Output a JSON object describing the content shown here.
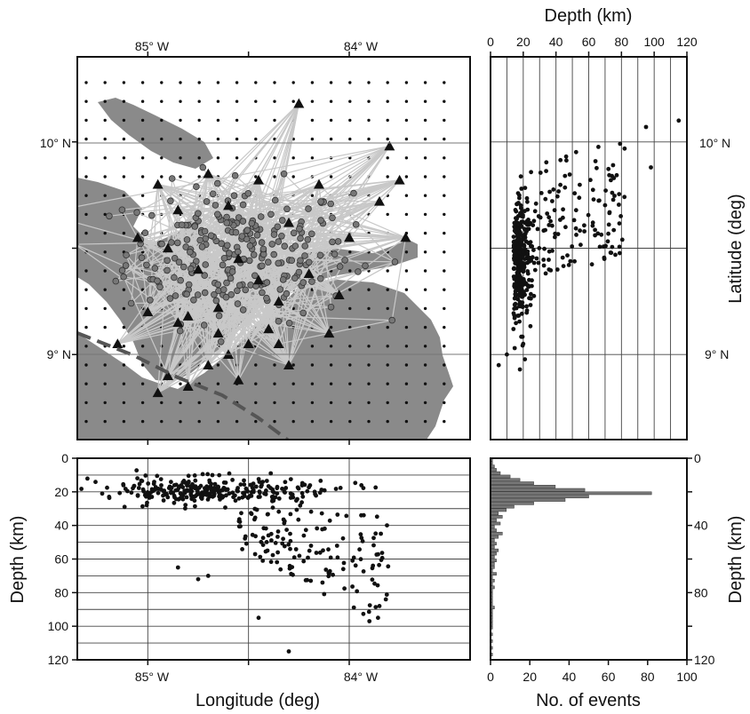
{
  "chart_data": [
    {
      "panel": "map",
      "type": "scatter",
      "x_ticks": [
        "85° W",
        "84° W"
      ],
      "y_ticks": [
        "10° N",
        "9° N"
      ],
      "xlim": [
        -85.35,
        -83.4
      ],
      "ylim": [
        8.6,
        10.4
      ],
      "series": [
        {
          "marker": "triangle",
          "color": "#111111",
          "x": [
            -84.25,
            -83.8,
            -83.75,
            -84.15,
            -84.45,
            -84.7,
            -84.95,
            -84.85,
            -85.05,
            -84.9,
            -84.6,
            -84.3,
            -84.0,
            -83.85,
            -83.72,
            -84.55,
            -84.75,
            -84.45,
            -84.2,
            -84.05,
            -84.35,
            -84.65,
            -84.8,
            -85.0,
            -84.4,
            -84.1,
            -84.5,
            -84.6,
            -84.7,
            -84.9,
            -84.55,
            -84.3,
            -84.8,
            -84.95,
            -85.15,
            -84.85,
            -84.65,
            -84.35
          ],
          "y": [
            10.18,
            9.98,
            9.82,
            9.8,
            9.82,
            9.85,
            9.8,
            9.68,
            9.55,
            9.5,
            9.7,
            9.62,
            9.55,
            9.72,
            9.55,
            9.45,
            9.4,
            9.35,
            9.38,
            9.28,
            9.25,
            9.22,
            9.18,
            9.2,
            9.12,
            9.1,
            9.05,
            9.0,
            8.95,
            8.9,
            8.88,
            8.95,
            8.85,
            8.82,
            9.05,
            9.15,
            9.1,
            9.05
          ]
        }
      ],
      "notes": "grey dots = earthquake epicenters; light grey lines = ray paths"
    },
    {
      "panel": "depth-lat",
      "type": "scatter",
      "xlabel": "Depth (km)",
      "ylabel": "Latitude (deg)",
      "x_ticks": [
        "0",
        "20",
        "40",
        "60",
        "80",
        "100",
        "120"
      ],
      "y_ticks": [
        "10° N",
        "9° N"
      ],
      "xlim": [
        0,
        120
      ],
      "ylim": [
        8.6,
        10.4
      ]
    },
    {
      "panel": "lon-depth",
      "type": "scatter",
      "xlabel": "Longitude (deg)",
      "ylabel": "Depth (km)",
      "x_ticks": [
        "85° W",
        "84° W"
      ],
      "y_ticks": [
        "0",
        "20",
        "40",
        "60",
        "80",
        "100",
        "120"
      ],
      "xlim": [
        -85.35,
        -83.4
      ],
      "ylim": [
        0,
        120
      ]
    },
    {
      "panel": "histogram",
      "type": "bar",
      "xlabel": "No. of events",
      "ylabel": "Depth (km)",
      "x_ticks": [
        "0",
        "20",
        "40",
        "60",
        "80",
        "100"
      ],
      "y_ticks": [
        "0",
        "40",
        "80",
        "120"
      ],
      "xlim": [
        0,
        100
      ],
      "ylim": [
        0,
        120
      ],
      "bin_width_km": 2,
      "depth_bins": [
        1,
        3,
        5,
        7,
        9,
        11,
        13,
        15,
        17,
        19,
        21,
        23,
        25,
        27,
        29,
        31,
        33,
        35,
        37,
        39,
        41,
        43,
        45,
        47,
        49,
        51,
        53,
        55,
        57,
        59,
        61,
        63,
        65,
        67,
        69,
        71,
        73,
        75,
        77,
        79,
        81,
        83,
        85,
        87,
        89,
        91,
        93,
        95,
        97,
        99,
        101,
        103,
        105,
        107,
        109,
        111,
        113,
        115,
        117,
        119
      ],
      "counts": [
        1,
        1,
        2,
        3,
        5,
        10,
        15,
        22,
        33,
        48,
        82,
        50,
        38,
        22,
        12,
        8,
        4,
        6,
        3,
        5,
        2,
        3,
        6,
        4,
        2,
        3,
        2,
        4,
        3,
        2,
        3,
        2,
        2,
        1,
        3,
        1,
        2,
        1,
        2,
        1,
        1,
        1,
        1,
        1,
        2,
        1,
        1,
        1,
        1,
        1,
        1,
        0,
        1,
        0,
        1,
        0,
        1,
        0,
        1,
        0
      ]
    }
  ]
}
